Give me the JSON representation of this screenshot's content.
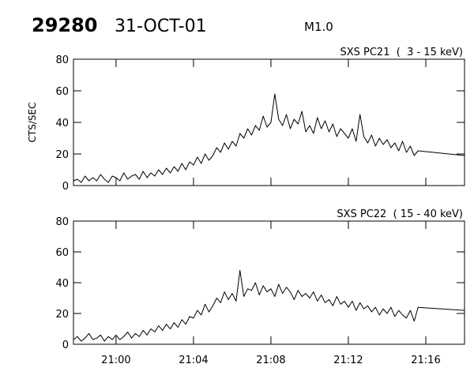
{
  "header": {
    "number": "29280",
    "date": "31-OCT-01",
    "class": "M1.0"
  },
  "chart_data": [
    {
      "type": "line",
      "title": "SXS PC21  (  3 - 15 keV)",
      "ylabel": "CTS/SEC",
      "color": "#000000",
      "xlim": [
        1257.8,
        1278
      ],
      "ylim": [
        0,
        80
      ],
      "yticks": [
        0,
        20,
        40,
        60,
        80
      ],
      "grid": false,
      "x": [
        1257.8,
        1258,
        1258.2,
        1258.4,
        1258.6,
        1258.8,
        1259,
        1259.2,
        1259.4,
        1259.6,
        1259.8,
        1260,
        1260.2,
        1260.4,
        1260.6,
        1260.8,
        1261,
        1261.2,
        1261.4,
        1261.6,
        1261.8,
        1262,
        1262.2,
        1262.4,
        1262.6,
        1262.8,
        1263,
        1263.2,
        1263.4,
        1263.6,
        1263.8,
        1264,
        1264.2,
        1264.4,
        1264.6,
        1264.8,
        1265,
        1265.2,
        1265.4,
        1265.6,
        1265.8,
        1266,
        1266.2,
        1266.4,
        1266.6,
        1266.8,
        1267,
        1267.2,
        1267.4,
        1267.6,
        1267.8,
        1268,
        1268.2,
        1268.4,
        1268.6,
        1268.8,
        1269,
        1269.2,
        1269.4,
        1269.6,
        1269.8,
        1270,
        1270.2,
        1270.4,
        1270.6,
        1270.8,
        1271,
        1271.2,
        1271.4,
        1271.6,
        1271.8,
        1272,
        1272.2,
        1272.4,
        1272.6,
        1272.8,
        1273,
        1273.2,
        1273.4,
        1273.6,
        1273.8,
        1274,
        1274.2,
        1274.4,
        1274.6,
        1274.8,
        1275,
        1275.2,
        1275.4,
        1275.6,
        1278
      ],
      "values": [
        3,
        4,
        2,
        6,
        3,
        5,
        3,
        7,
        4,
        2,
        6,
        5,
        3,
        8,
        4,
        6,
        7,
        4,
        9,
        5,
        8,
        6,
        10,
        7,
        11,
        8,
        12,
        9,
        14,
        10,
        15,
        13,
        18,
        14,
        20,
        16,
        19,
        24,
        21,
        27,
        23,
        28,
        25,
        33,
        30,
        36,
        32,
        38,
        35,
        44,
        37,
        40,
        58,
        42,
        38,
        45,
        36,
        42,
        39,
        47,
        34,
        38,
        33,
        43,
        36,
        41,
        34,
        39,
        31,
        36,
        33,
        30,
        36,
        28,
        45,
        31,
        27,
        32,
        25,
        30,
        26,
        29,
        24,
        27,
        22,
        28,
        21,
        25,
        19,
        22,
        19
      ]
    },
    {
      "type": "line",
      "title": "SXS PC22  ( 15 - 40 keV)",
      "color": "#000000",
      "xlim": [
        1257.8,
        1278
      ],
      "ylim": [
        0,
        80
      ],
      "yticks": [
        0,
        20,
        40,
        60,
        80
      ],
      "grid": false,
      "xticks": [
        {
          "value": 1260,
          "label": "21:00"
        },
        {
          "value": 1264,
          "label": "21:04"
        },
        {
          "value": 1268,
          "label": "21:08"
        },
        {
          "value": 1272,
          "label": "21:12"
        },
        {
          "value": 1276,
          "label": "21:16"
        }
      ],
      "x": [
        1257.8,
        1258,
        1258.2,
        1258.4,
        1258.6,
        1258.8,
        1259,
        1259.2,
        1259.4,
        1259.6,
        1259.8,
        1260,
        1260.2,
        1260.4,
        1260.6,
        1260.8,
        1261,
        1261.2,
        1261.4,
        1261.6,
        1261.8,
        1262,
        1262.2,
        1262.4,
        1262.6,
        1262.8,
        1263,
        1263.2,
        1263.4,
        1263.6,
        1263.8,
        1264,
        1264.2,
        1264.4,
        1264.6,
        1264.8,
        1265,
        1265.2,
        1265.4,
        1265.6,
        1265.8,
        1266,
        1266.2,
        1266.4,
        1266.6,
        1266.8,
        1267,
        1267.2,
        1267.4,
        1267.6,
        1267.8,
        1268,
        1268.2,
        1268.4,
        1268.6,
        1268.8,
        1269,
        1269.2,
        1269.4,
        1269.6,
        1269.8,
        1270,
        1270.2,
        1270.4,
        1270.6,
        1270.8,
        1271,
        1271.2,
        1271.4,
        1271.6,
        1271.8,
        1272,
        1272.2,
        1272.4,
        1272.6,
        1272.8,
        1273,
        1273.2,
        1273.4,
        1273.6,
        1273.8,
        1274,
        1274.2,
        1274.4,
        1274.6,
        1274.8,
        1275,
        1275.2,
        1275.4,
        1275.6,
        1278
      ],
      "values": [
        3,
        5,
        2,
        4,
        7,
        3,
        4,
        6,
        2,
        5,
        3,
        6,
        3,
        5,
        8,
        4,
        7,
        5,
        9,
        6,
        10,
        8,
        12,
        9,
        13,
        10,
        14,
        11,
        16,
        13,
        18,
        17,
        22,
        19,
        26,
        21,
        25,
        30,
        27,
        34,
        29,
        33,
        28,
        48,
        31,
        36,
        35,
        40,
        32,
        38,
        34,
        36,
        31,
        39,
        33,
        37,
        34,
        29,
        35,
        31,
        33,
        30,
        34,
        28,
        32,
        27,
        29,
        25,
        31,
        26,
        28,
        24,
        28,
        22,
        27,
        23,
        25,
        21,
        24,
        19,
        23,
        20,
        24,
        18,
        22,
        19,
        17,
        22,
        15,
        24,
        22
      ]
    }
  ]
}
